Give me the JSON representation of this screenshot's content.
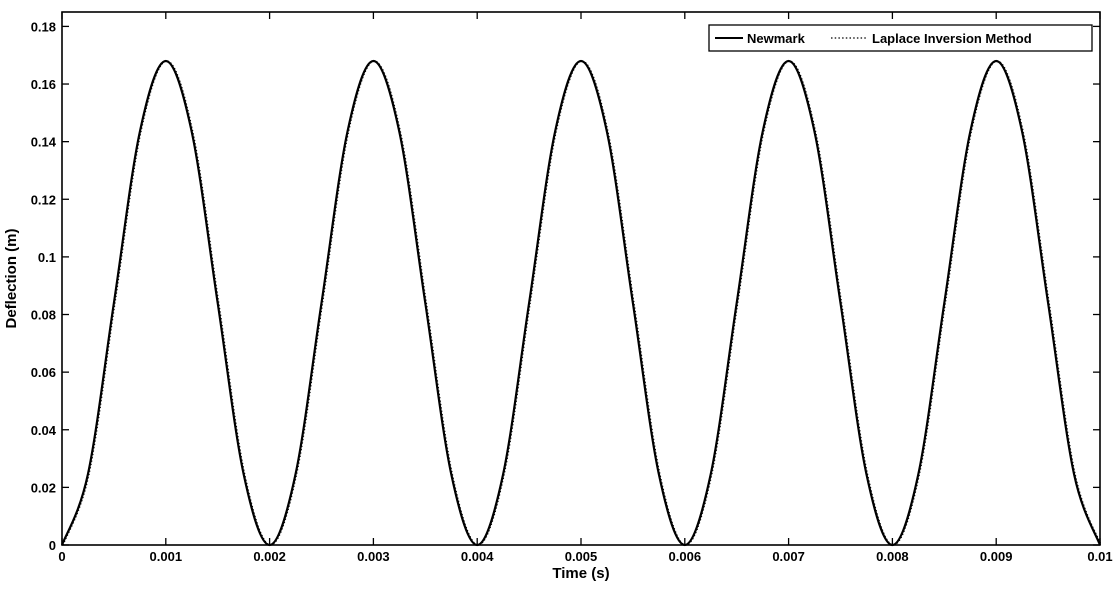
{
  "chart_data": {
    "type": "line",
    "xlabel": "Time (s)",
    "ylabel": "Deflection (m)",
    "xlim": [
      0,
      0.01
    ],
    "ylim": [
      0,
      0.185
    ],
    "xticks": [
      0,
      0.001,
      0.002,
      0.003,
      0.004,
      0.005,
      0.006,
      0.007,
      0.008,
      0.009,
      0.01
    ],
    "xtick_labels": [
      "0",
      "0.001",
      "0.002",
      "0.003",
      "0.004",
      "0.005",
      "0.006",
      "0.007",
      "0.008",
      "0.009",
      "0.01"
    ],
    "yticks": [
      0,
      0.02,
      0.04,
      0.06,
      0.08,
      0.1,
      0.12,
      0.14,
      0.16,
      0.18
    ],
    "ytick_labels": [
      "0",
      "0.02",
      "0.04",
      "0.06",
      "0.08",
      "0.1",
      "0.12",
      "0.14",
      "0.16",
      "0.18"
    ],
    "grid": false,
    "legend_position": "top-right",
    "series": [
      {
        "name": "Newmark",
        "style": "solid",
        "color": "#000000",
        "x": [
          0,
          0.00025,
          0.0005,
          0.00075,
          0.001,
          0.00125,
          0.0015,
          0.00175,
          0.002,
          0.00225,
          0.0025,
          0.00275,
          0.003,
          0.00325,
          0.0035,
          0.00375,
          0.004,
          0.00425,
          0.0045,
          0.00475,
          0.005,
          0.00525,
          0.0055,
          0.00575,
          0.006,
          0.00625,
          0.0065,
          0.00675,
          0.007,
          0.00725,
          0.0075,
          0.00775,
          0.008,
          0.00825,
          0.0085,
          0.00875,
          0.009,
          0.00925,
          0.0095,
          0.00975,
          0.01
        ],
        "y": [
          0,
          0.0246,
          0.084,
          0.1434,
          0.168,
          0.1434,
          0.084,
          0.0246,
          0,
          0.0246,
          0.084,
          0.1434,
          0.168,
          0.1434,
          0.084,
          0.0246,
          0,
          0.0246,
          0.084,
          0.1434,
          0.168,
          0.1434,
          0.084,
          0.0246,
          0,
          0.0246,
          0.084,
          0.1434,
          0.168,
          0.1434,
          0.084,
          0.0246,
          0,
          0.0246,
          0.084,
          0.1434,
          0.168,
          0.1434,
          0.084,
          0.0246,
          0
        ]
      },
      {
        "name": "Laplace Inversion Method",
        "style": "dotted",
        "color": "#000000",
        "x": [
          0,
          0.00025,
          0.0005,
          0.00075,
          0.001,
          0.00125,
          0.0015,
          0.00175,
          0.002,
          0.00225,
          0.0025,
          0.00275,
          0.003,
          0.00325,
          0.0035,
          0.00375,
          0.004,
          0.00425,
          0.0045,
          0.00475,
          0.005,
          0.00525,
          0.0055,
          0.00575,
          0.006,
          0.00625,
          0.0065,
          0.00675,
          0.007,
          0.00725,
          0.0075,
          0.00775,
          0.008,
          0.00825,
          0.0085,
          0.00875,
          0.009,
          0.00925,
          0.0095,
          0.00975,
          0.01
        ],
        "y": [
          0,
          0.0246,
          0.084,
          0.1434,
          0.168,
          0.1434,
          0.084,
          0.0246,
          0,
          0.0246,
          0.084,
          0.1434,
          0.168,
          0.1434,
          0.084,
          0.0246,
          0,
          0.0246,
          0.084,
          0.1434,
          0.168,
          0.1434,
          0.084,
          0.0246,
          0,
          0.0246,
          0.084,
          0.1434,
          0.168,
          0.1434,
          0.084,
          0.0246,
          0,
          0.0246,
          0.084,
          0.1434,
          0.168,
          0.1434,
          0.084,
          0.0246,
          0
        ]
      }
    ]
  }
}
